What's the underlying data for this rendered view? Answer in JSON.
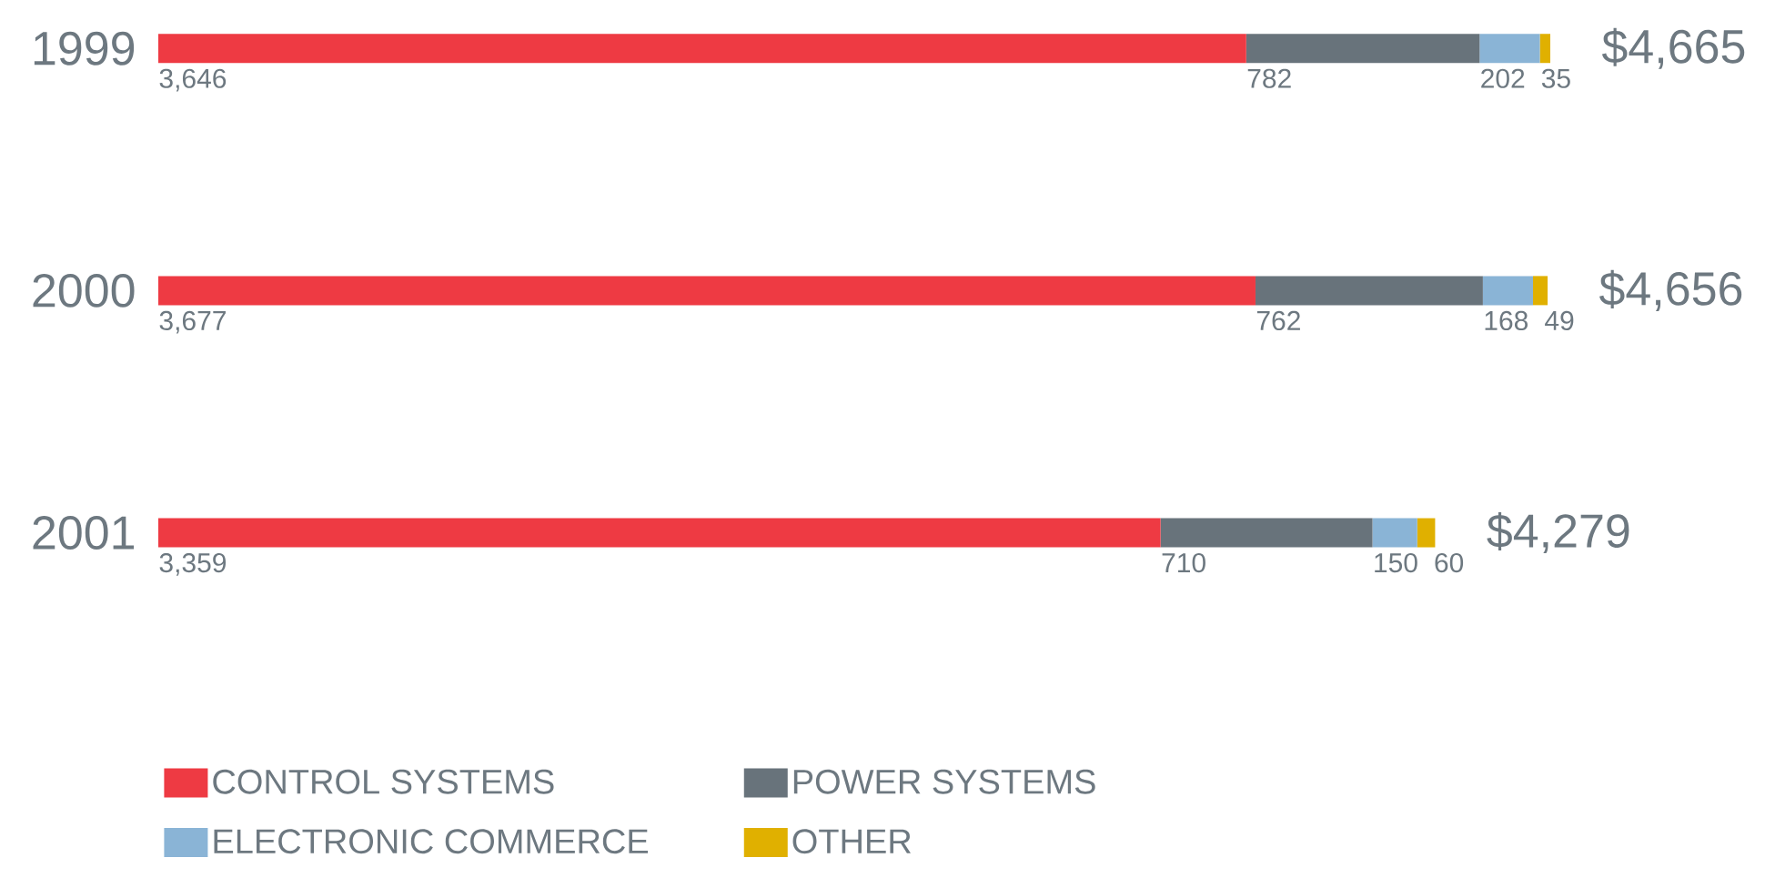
{
  "chart_data": {
    "type": "bar",
    "orientation": "horizontal",
    "stacked": true,
    "categories": [
      "1999",
      "2000",
      "2001"
    ],
    "series": [
      {
        "name": "CONTROL SYSTEMS",
        "color": "#ee3a43",
        "values": [
          3646,
          3677,
          3359
        ],
        "value_labels": [
          "3,646",
          "3,677",
          "3,359"
        ]
      },
      {
        "name": "POWER SYSTEMS",
        "color": "#68737b",
        "values": [
          782,
          762,
          710
        ],
        "value_labels": [
          "782",
          "762",
          "710"
        ]
      },
      {
        "name": "ELECTRONIC COMMERCE",
        "color": "#8ab4d6",
        "values": [
          202,
          168,
          150
        ],
        "value_labels": [
          "202",
          "168",
          "150"
        ]
      },
      {
        "name": "OTHER",
        "color": "#e0b000",
        "values": [
          35,
          49,
          60
        ],
        "value_labels": [
          "35",
          "49",
          "60"
        ]
      }
    ],
    "totals": [
      "$4,665",
      "$4,656",
      "$4,279"
    ],
    "legend": "bottom left"
  }
}
